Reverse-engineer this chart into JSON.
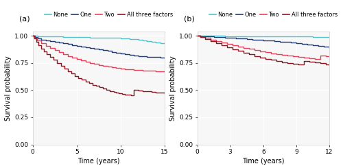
{
  "background_color": "#ffffff",
  "panel_bg": "#f7f7f7",
  "grid_color": "#ffffff",
  "colors": {
    "none": "#4fc3cc",
    "one": "#1e3a6e",
    "two": "#e8405a",
    "three": "#8b1520"
  },
  "legend_labels": [
    "None",
    "One",
    "Two",
    "All three factors"
  ],
  "ylabel": "Survival probability",
  "xlabel": "Time (years)",
  "panel_a": {
    "label": "(a)",
    "xlim": [
      0,
      15
    ],
    "xticks": [
      0,
      5,
      10,
      15
    ],
    "ylim": [
      0.0,
      1.04
    ],
    "yticks": [
      0.0,
      0.25,
      0.5,
      0.75,
      1.0
    ],
    "yticklabels": [
      "0.00",
      "0.25",
      "0.50",
      "0.75",
      "1.00"
    ],
    "curves": {
      "none": {
        "x": [
          0,
          0.3,
          0.6,
          1.0,
          1.5,
          2.0,
          2.5,
          3.0,
          3.5,
          4.0,
          4.5,
          5.0,
          5.5,
          6.0,
          6.5,
          7.0,
          7.5,
          8.0,
          8.5,
          9.0,
          9.5,
          10.0,
          10.5,
          11.0,
          11.5,
          12.0,
          12.5,
          13.0,
          13.5,
          14.0,
          14.5,
          15.0
        ],
        "y": [
          1.0,
          1.0,
          0.998,
          0.997,
          0.996,
          0.995,
          0.994,
          0.993,
          0.992,
          0.991,
          0.99,
          0.989,
          0.988,
          0.987,
          0.986,
          0.985,
          0.984,
          0.983,
          0.982,
          0.981,
          0.98,
          0.979,
          0.975,
          0.972,
          0.968,
          0.963,
          0.958,
          0.952,
          0.946,
          0.94,
          0.934,
          0.93
        ]
      },
      "one": {
        "x": [
          0,
          0.3,
          0.6,
          1.0,
          1.5,
          2.0,
          2.5,
          3.0,
          3.5,
          4.0,
          4.5,
          5.0,
          5.5,
          6.0,
          6.5,
          7.0,
          7.5,
          8.0,
          8.5,
          9.0,
          9.5,
          10.0,
          10.5,
          11.0,
          11.5,
          12.0,
          12.5,
          13.0,
          13.5,
          14.0,
          14.5,
          15.0
        ],
        "y": [
          1.0,
          0.99,
          0.975,
          0.965,
          0.957,
          0.95,
          0.943,
          0.937,
          0.93,
          0.923,
          0.916,
          0.909,
          0.902,
          0.896,
          0.889,
          0.882,
          0.875,
          0.868,
          0.86,
          0.852,
          0.845,
          0.837,
          0.83,
          0.822,
          0.816,
          0.812,
          0.81,
          0.808,
          0.806,
          0.803,
          0.8,
          0.797
        ]
      },
      "two": {
        "x": [
          0,
          0.2,
          0.5,
          1.0,
          1.5,
          2.0,
          2.5,
          3.0,
          3.5,
          4.0,
          4.5,
          5.0,
          5.5,
          6.0,
          6.5,
          7.0,
          7.5,
          8.0,
          8.5,
          9.0,
          9.5,
          10.0,
          10.5,
          11.0,
          11.5,
          12.0,
          12.5,
          13.0,
          13.5,
          14.0,
          14.5,
          15.0
        ],
        "y": [
          1.0,
          0.98,
          0.955,
          0.93,
          0.908,
          0.887,
          0.868,
          0.85,
          0.832,
          0.815,
          0.8,
          0.786,
          0.774,
          0.762,
          0.751,
          0.742,
          0.733,
          0.724,
          0.716,
          0.71,
          0.704,
          0.699,
          0.695,
          0.691,
          0.688,
          0.685,
          0.682,
          0.68,
          0.678,
          0.676,
          0.673,
          0.67
        ]
      },
      "three": {
        "x": [
          0,
          0.2,
          0.4,
          0.7,
          1.0,
          1.3,
          1.6,
          2.0,
          2.4,
          2.8,
          3.2,
          3.6,
          4.0,
          4.4,
          4.8,
          5.2,
          5.6,
          6.0,
          6.4,
          6.8,
          7.2,
          7.6,
          8.0,
          8.4,
          8.8,
          9.2,
          9.5,
          9.8,
          10.2,
          10.5,
          10.8,
          11.2,
          11.5,
          12.0,
          12.5,
          13.0,
          13.5,
          14.0,
          14.5,
          15.0
        ],
        "y": [
          1.0,
          0.975,
          0.945,
          0.912,
          0.882,
          0.856,
          0.832,
          0.805,
          0.778,
          0.752,
          0.726,
          0.7,
          0.675,
          0.652,
          0.63,
          0.612,
          0.595,
          0.578,
          0.563,
          0.55,
          0.538,
          0.525,
          0.513,
          0.502,
          0.492,
          0.482,
          0.475,
          0.468,
          0.464,
          0.46,
          0.456,
          0.453,
          0.5,
          0.495,
          0.491,
          0.488,
          0.484,
          0.48,
          0.477,
          0.474
        ]
      }
    }
  },
  "panel_b": {
    "label": "(b)",
    "xlim": [
      0,
      12
    ],
    "xticks": [
      0,
      3,
      6,
      9,
      12
    ],
    "ylim": [
      0.0,
      1.04
    ],
    "yticks": [
      0.0,
      0.25,
      0.5,
      0.75,
      1.0
    ],
    "yticklabels": [
      "0.00",
      "0.25",
      "0.50",
      "0.75",
      "1.00"
    ],
    "curves": {
      "none": {
        "x": [
          0,
          0.3,
          0.8,
          1.5,
          2.0,
          2.5,
          3.0,
          3.5,
          4.0,
          4.5,
          5.0,
          5.5,
          6.0,
          6.5,
          7.0,
          7.5,
          8.0,
          8.5,
          9.0,
          9.5,
          10.0,
          10.5,
          11.0,
          11.5,
          12.0
        ],
        "y": [
          1.0,
          1.0,
          0.9995,
          0.999,
          0.999,
          0.998,
          0.998,
          0.998,
          0.997,
          0.997,
          0.997,
          0.996,
          0.996,
          0.996,
          0.995,
          0.995,
          0.995,
          0.994,
          0.994,
          0.993,
          0.993,
          0.992,
          0.991,
          0.99,
          0.988
        ]
      },
      "one": {
        "x": [
          0,
          0.3,
          0.8,
          1.5,
          2.0,
          2.5,
          3.0,
          3.5,
          4.0,
          4.5,
          5.0,
          5.5,
          6.0,
          6.5,
          7.0,
          7.5,
          8.0,
          8.5,
          9.0,
          9.5,
          10.0,
          10.5,
          11.0,
          11.5,
          12.0
        ],
        "y": [
          1.0,
          0.998,
          0.994,
          0.99,
          0.987,
          0.984,
          0.981,
          0.978,
          0.974,
          0.97,
          0.966,
          0.962,
          0.958,
          0.955,
          0.951,
          0.947,
          0.943,
          0.939,
          0.934,
          0.929,
          0.922,
          0.915,
          0.907,
          0.898,
          0.888
        ]
      },
      "two": {
        "x": [
          0,
          0.3,
          0.7,
          1.2,
          1.7,
          2.2,
          2.7,
          3.2,
          3.7,
          4.2,
          4.7,
          5.2,
          5.7,
          6.2,
          6.7,
          7.2,
          7.7,
          8.2,
          8.7,
          9.2,
          9.7,
          10.2,
          10.7,
          11.2,
          11.7,
          12.0
        ],
        "y": [
          1.0,
          0.992,
          0.98,
          0.966,
          0.952,
          0.939,
          0.926,
          0.913,
          0.901,
          0.89,
          0.879,
          0.869,
          0.859,
          0.849,
          0.84,
          0.832,
          0.824,
          0.817,
          0.811,
          0.805,
          0.8,
          0.794,
          0.789,
          0.82,
          0.815,
          0.812
        ]
      },
      "three": {
        "x": [
          0,
          0.3,
          0.7,
          1.2,
          1.7,
          2.2,
          2.7,
          3.2,
          3.7,
          4.2,
          4.7,
          5.2,
          5.7,
          6.2,
          6.7,
          7.2,
          7.7,
          8.2,
          8.7,
          9.2,
          9.7,
          10.2,
          10.7,
          11.2,
          11.7,
          12.0
        ],
        "y": [
          1.0,
          0.988,
          0.97,
          0.95,
          0.93,
          0.911,
          0.893,
          0.876,
          0.86,
          0.844,
          0.829,
          0.815,
          0.802,
          0.789,
          0.778,
          0.768,
          0.758,
          0.749,
          0.741,
          0.734,
          0.77,
          0.762,
          0.754,
          0.748,
          0.738,
          0.73
        ]
      }
    }
  }
}
